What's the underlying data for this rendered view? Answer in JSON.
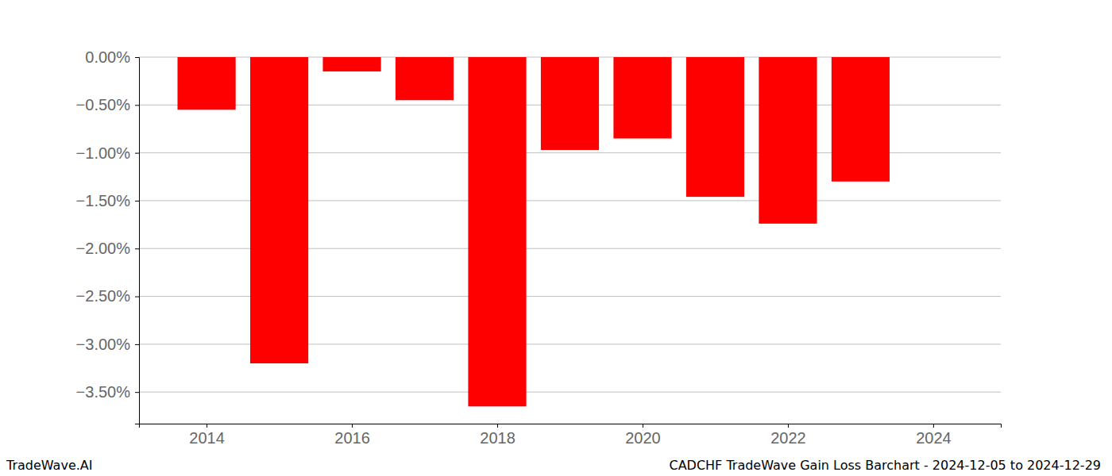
{
  "chart_data": {
    "type": "bar",
    "title": "CADCHF TradeWave Gain Loss Barchart - 2024-12-05 to 2024-12-29",
    "annotations": [
      "TradeWave.AI"
    ],
    "x": [
      2014,
      2015,
      2016,
      2017,
      2018,
      2019,
      2020,
      2021,
      2022,
      2023
    ],
    "values": [
      -0.55,
      -3.2,
      -0.15,
      -0.45,
      -3.65,
      -0.97,
      -0.85,
      -1.46,
      -1.74,
      -1.3
    ],
    "color": "#ff0000",
    "xlim": [
      2013.07,
      2024.93
    ],
    "xticks": [
      2014,
      2016,
      2018,
      2020,
      2022,
      2024
    ],
    "ylim": [
      -3.83,
      0
    ],
    "yticks": [
      {
        "value": 0,
        "label": "0.00%"
      },
      {
        "value": -0.5,
        "label": "−0.50%"
      },
      {
        "value": -1,
        "label": "−1.00%"
      },
      {
        "value": -1.5,
        "label": "−1.50%"
      },
      {
        "value": -2,
        "label": "−2.00%"
      },
      {
        "value": -2.5,
        "label": "−2.50%"
      },
      {
        "value": -3,
        "label": "−3.00%"
      },
      {
        "value": -3.5,
        "label": "−3.50%"
      }
    ],
    "grid": true
  }
}
